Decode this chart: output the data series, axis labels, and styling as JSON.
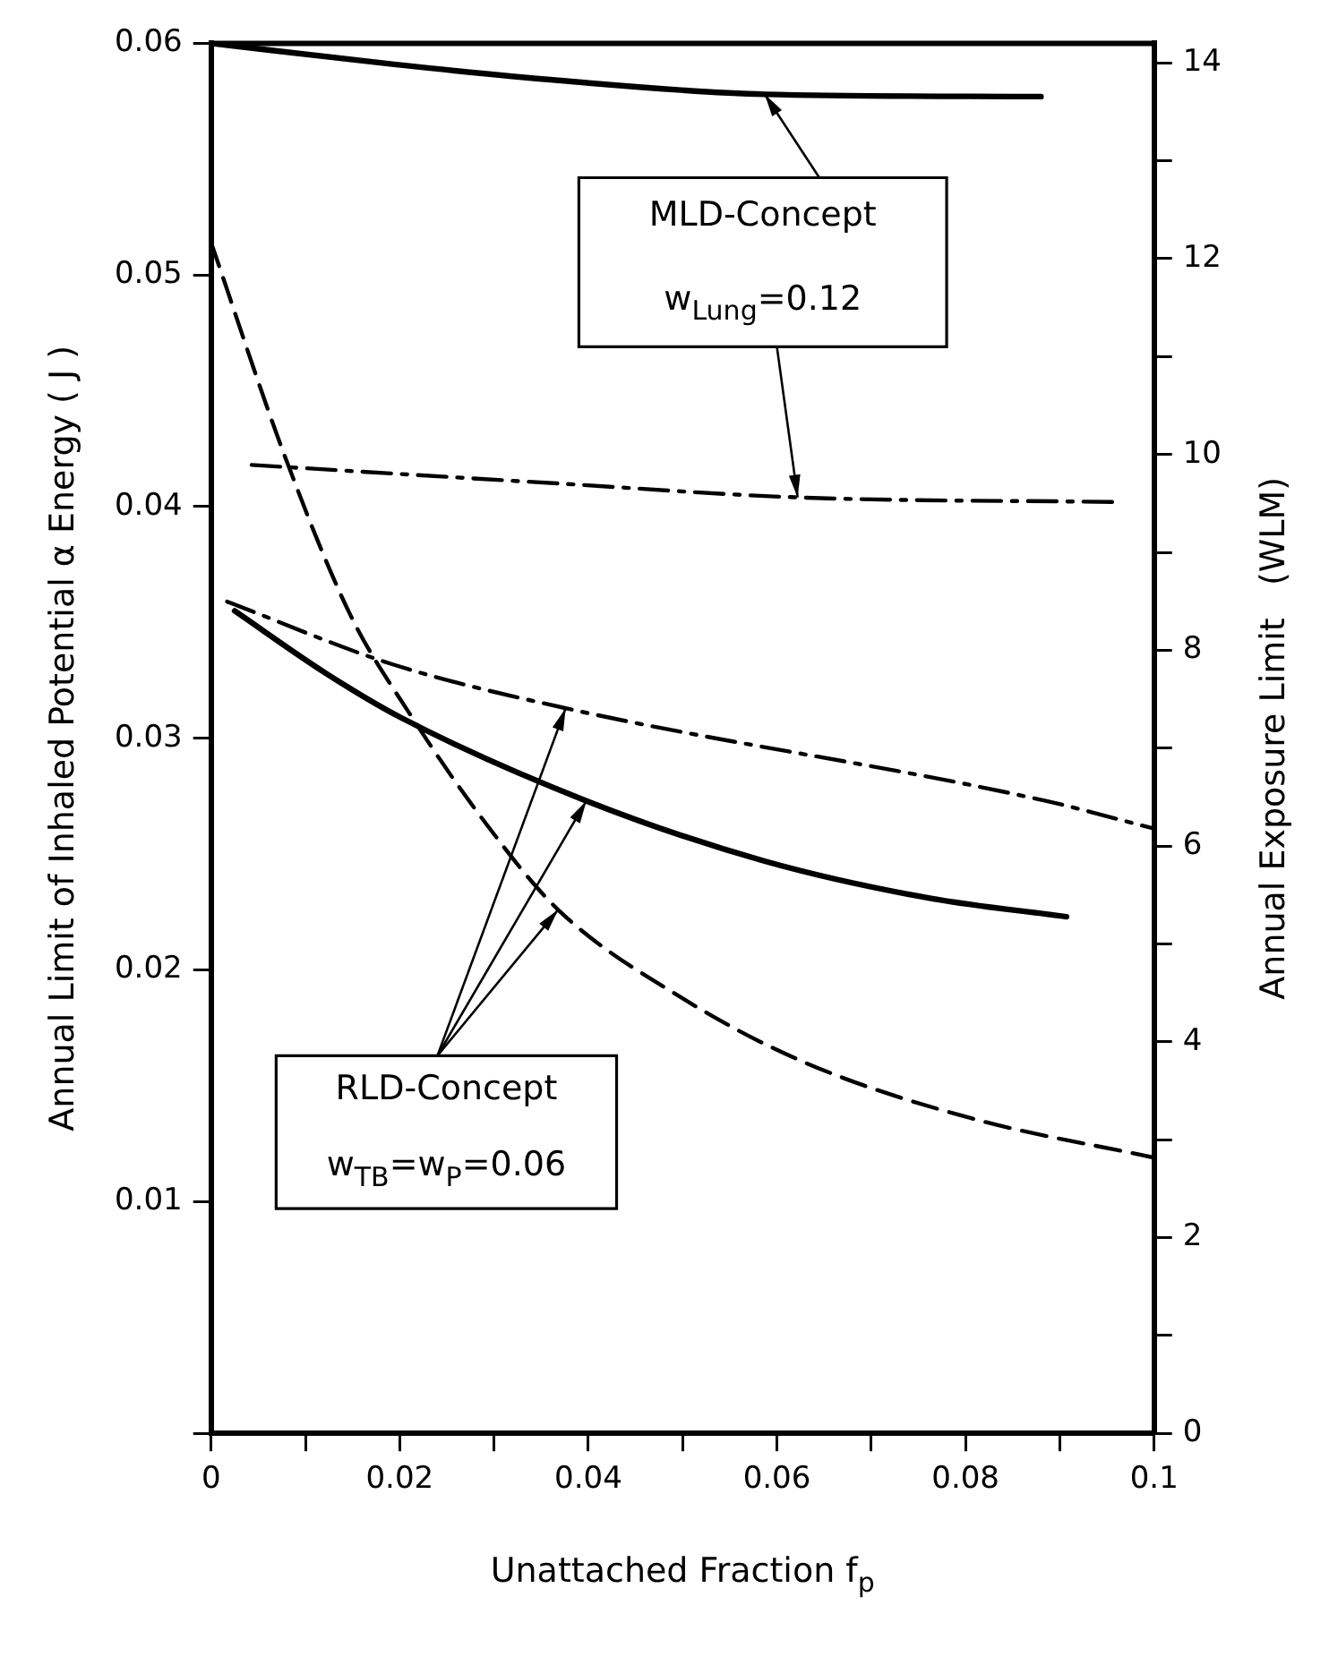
{
  "chart_data": {
    "type": "line",
    "xlabel": "Unattached Fraction f$_{p}$",
    "ylabel": "Annual Limit of Inhaled Potential α Energy ( J )",
    "y2label": "Annual Exposure Limit   (WLM)",
    "xlim": [
      0,
      0.1
    ],
    "xticks": [
      0,
      {
        "value": 0.01,
        "label": null
      },
      0.02,
      {
        "value": 0.03,
        "label": null
      },
      0.04,
      {
        "value": 0.05,
        "label": null
      },
      0.06,
      {
        "value": 0.07,
        "label": null
      },
      0.08,
      {
        "value": 0.09,
        "label": null
      },
      0.1
    ],
    "ylim": [
      0,
      0.06
    ],
    "yticks": [
      {
        "value": 0,
        "label": null
      },
      0.01,
      0.02,
      0.03,
      0.04,
      0.05,
      0.06
    ],
    "y2lim": [
      0,
      14.2
    ],
    "y2ticks": [
      0,
      {
        "value": 1,
        "label": null
      },
      2,
      {
        "value": 3,
        "label": null
      },
      4,
      {
        "value": 5,
        "label": null
      },
      6,
      {
        "value": 7,
        "label": null
      },
      8,
      {
        "value": 9,
        "label": null
      },
      10,
      {
        "value": 11,
        "label": null
      },
      12,
      {
        "value": 13,
        "label": null
      },
      14
    ],
    "marker": "none",
    "series": [
      {
        "color": "#000000",
        "line_style": "solid",
        "x": [
          0,
          0.0192,
          0.0368,
          0.0587,
          0.088
        ],
        "values": [
          0.06,
          0.0591,
          0.0584,
          0.0578,
          0.0577
        ]
      },
      {
        "color": "#000000",
        "line_style": "dashdot",
        "x": [
          0.0043,
          0.0368,
          0.0622,
          0.096
        ],
        "values": [
          0.0418,
          0.041,
          0.0404,
          0.0402
        ]
      },
      {
        "color": "#000000",
        "line_style": "dashed",
        "x": [
          0,
          0.0078,
          0.0148,
          0.021,
          0.029,
          0.0368,
          0.0499,
          0.063,
          0.0806,
          0.1
        ],
        "values": [
          0.0514,
          0.0422,
          0.0353,
          0.0311,
          0.0264,
          0.0226,
          0.0188,
          0.016,
          0.0136,
          0.0119
        ]
      },
      {
        "color": "#000000",
        "line_style": "solid",
        "x": [
          0.0025,
          0.0122,
          0.0201,
          0.0398,
          0.0587,
          0.0762,
          0.0907
        ],
        "values": [
          0.0355,
          0.0328,
          0.0309,
          0.0273,
          0.0247,
          0.0231,
          0.0223
        ]
      },
      {
        "color": "#000000",
        "line_style": "dashdot",
        "x": [
          0.0017,
          0.0192,
          0.0376,
          0.0885,
          0.1
        ],
        "values": [
          0.0359,
          0.0332,
          0.0313,
          0.0273,
          0.0261
        ]
      }
    ],
    "annotations": [
      {
        "text": "MLD-Concept",
        "x": 0.0587,
        "y": 0.0578
      },
      {
        "text": "w$_{Lung}$=0.12",
        "x": 0.0622,
        "y": 0.0404
      },
      {
        "text": "RLD-Concept",
        "x": 0.0376,
        "y": 0.0313
      },
      "w$_{TB}$=w$_{P}$=0.06"
    ]
  }
}
